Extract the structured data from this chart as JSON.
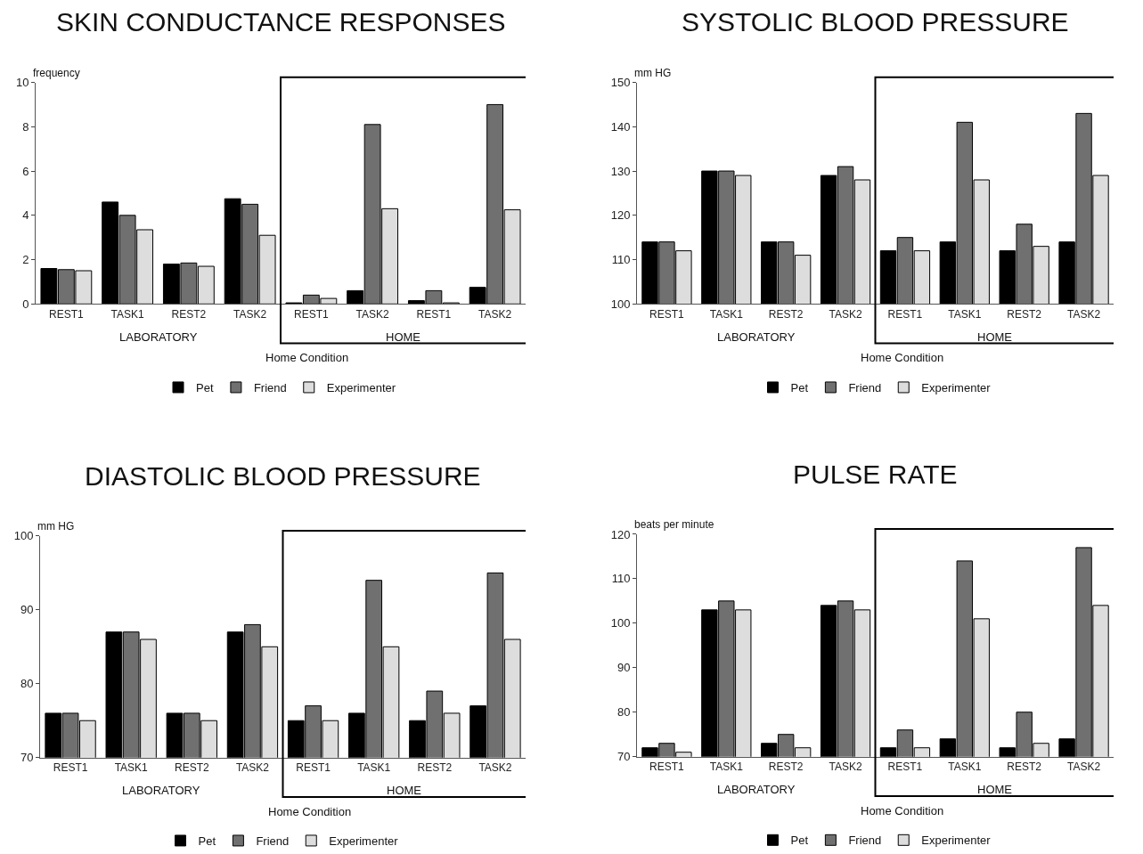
{
  "chart_data": [
    {
      "type": "bar",
      "title": "SKIN CONDUCTANCE RESPONSES",
      "ylabel": "frequency",
      "xlabel": "Home Condition",
      "categories": [
        "REST1",
        "TASK1",
        "REST2",
        "TASK2",
        "REST1",
        "TASK2",
        "REST1",
        "TASK2"
      ],
      "annotations": [
        "LABORATORY",
        "HOME"
      ],
      "ylim": [
        0,
        10
      ],
      "yticks": [
        0,
        2,
        4,
        6,
        8,
        10
      ],
      "legend": "bottom",
      "series": [
        {
          "name": "Pet",
          "color": "#000000",
          "values": [
            1.6,
            4.6,
            1.8,
            4.75,
            0.05,
            0.6,
            0.15,
            0.75
          ]
        },
        {
          "name": "Friend",
          "color": "#707070",
          "values": [
            1.55,
            4.0,
            1.85,
            4.5,
            0.4,
            8.1,
            0.6,
            9.0
          ]
        },
        {
          "name": "Experimenter",
          "color": "#dddddd",
          "values": [
            1.5,
            3.35,
            1.7,
            3.1,
            0.25,
            4.3,
            0.05,
            4.25
          ]
        }
      ]
    },
    {
      "type": "bar",
      "title": "SYSTOLIC BLOOD PRESSURE",
      "ylabel": "mm HG",
      "xlabel": "Home Condition",
      "categories": [
        "REST1",
        "TASK1",
        "REST2",
        "TASK2",
        "REST1",
        "TASK1",
        "REST2",
        "TASK2"
      ],
      "annotations": [
        "LABORATORY",
        "HOME"
      ],
      "ylim": [
        100,
        150
      ],
      "yticks": [
        100,
        110,
        120,
        130,
        140,
        150
      ],
      "legend": "bottom",
      "series": [
        {
          "name": "Pet",
          "color": "#000000",
          "values": [
            114,
            130,
            114,
            129,
            112,
            114,
            112,
            114
          ]
        },
        {
          "name": "Friend",
          "color": "#707070",
          "values": [
            114,
            130,
            114,
            131,
            115,
            141,
            118,
            143
          ]
        },
        {
          "name": "Experimenter",
          "color": "#dddddd",
          "values": [
            112,
            129,
            111,
            128,
            112,
            128,
            113,
            129
          ]
        }
      ]
    },
    {
      "type": "bar",
      "title": "DIASTOLIC BLOOD PRESSURE",
      "ylabel": "mm HG",
      "xlabel": "Home Condition",
      "categories": [
        "REST1",
        "TASK1",
        "REST2",
        "TASK2",
        "REST1",
        "TASK1",
        "REST2",
        "TASK2"
      ],
      "annotations": [
        "LABORATORY",
        "HOME"
      ],
      "ylim": [
        70,
        100
      ],
      "yticks": [
        70,
        80,
        90,
        100
      ],
      "legend": "bottom",
      "series": [
        {
          "name": "Pet",
          "color": "#000000",
          "values": [
            76,
            87,
            76,
            87,
            75,
            76,
            75,
            77
          ]
        },
        {
          "name": "Friend",
          "color": "#707070",
          "values": [
            76,
            87,
            76,
            88,
            77,
            94,
            79,
            95
          ]
        },
        {
          "name": "Experimenter",
          "color": "#dddddd",
          "values": [
            75,
            86,
            75,
            85,
            75,
            85,
            76,
            86
          ]
        }
      ]
    },
    {
      "type": "bar",
      "title": "PULSE RATE",
      "ylabel": "beats per minute",
      "xlabel": "Home Condition",
      "categories": [
        "REST1",
        "TASK1",
        "REST2",
        "TASK2",
        "REST1",
        "TASK1",
        "REST2",
        "TASK2"
      ],
      "annotations": [
        "LABORATORY",
        "HOME"
      ],
      "ylim": [
        70,
        120
      ],
      "yticks": [
        70,
        80,
        90,
        100,
        110,
        120
      ],
      "legend": "bottom",
      "series": [
        {
          "name": "Pet",
          "color": "#000000",
          "values": [
            72,
            103,
            73,
            104,
            72,
            74,
            72,
            74
          ]
        },
        {
          "name": "Friend",
          "color": "#707070",
          "values": [
            73,
            105,
            75,
            105,
            76,
            114,
            80,
            117
          ]
        },
        {
          "name": "Experimenter",
          "color": "#dddddd",
          "values": [
            71,
            103,
            72,
            103,
            72,
            101,
            73,
            104
          ]
        }
      ]
    }
  ]
}
